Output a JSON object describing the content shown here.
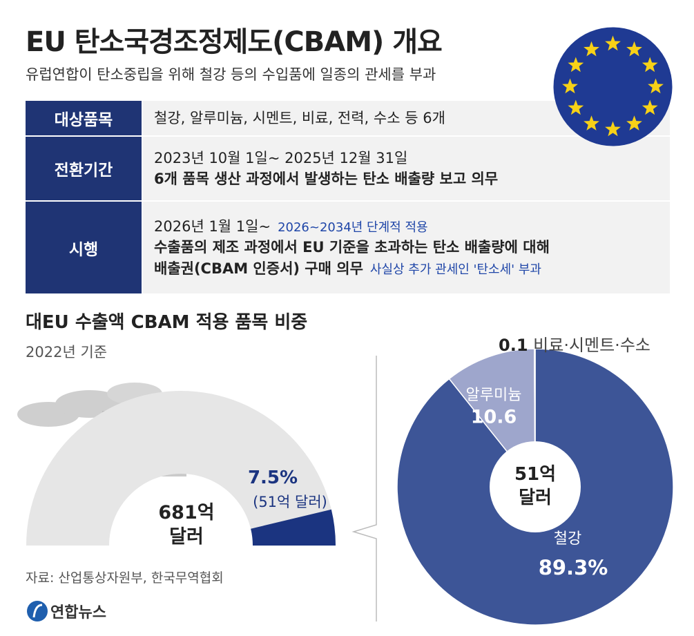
{
  "header": {
    "title": "EU 탄소국경조정제도(CBAM) 개요",
    "subtitle": "유럽연합이 탄소중립을 위해 철강 등의 수입품에 일종의 관세를 부과"
  },
  "table": {
    "rows": [
      {
        "label": "대상품목",
        "lines": [
          {
            "text": "철강, 알루미늄, 시멘트, 비료, 전력, 수소 등 6개"
          }
        ]
      },
      {
        "label": "전환기간",
        "lines": [
          {
            "text": "2023년 10월 1일~ 2025년 12월 31일"
          },
          {
            "text": "6개 품목 생산 과정에서 발생하는 탄소 배출량 보고 의무",
            "bold": true
          }
        ]
      },
      {
        "label": "시행",
        "lines": [
          {
            "text": "2026년 1월 1일~",
            "note": "2026~2034년 단계적 적용"
          },
          {
            "text": "수출품의 제조 과정에서 EU 기준을 초과하는 탄소 배출량에 대해",
            "bold": true
          },
          {
            "text": "배출권(CBAM 인증서) 구매 의무",
            "bold": true,
            "note": "사실상 추가 관세인 '탄소세' 부과"
          }
        ]
      }
    ]
  },
  "chart_data": [
    {
      "type": "gauge",
      "title": "대EU 수출액 CBAM 적용 품목 비중",
      "subtitle": "2022년 기준",
      "total_label": "681억 달러",
      "values": [
        7.5
      ],
      "value_labels": [
        "7.5%"
      ],
      "annotation": "(51억 달러)",
      "ylim": [
        0,
        100
      ],
      "color": "#1b3480",
      "track_color": "#e6e6e6"
    },
    {
      "type": "pie",
      "categories": [
        "철강",
        "알루미늄",
        "비료·시멘트·수소"
      ],
      "values": [
        89.3,
        10.6,
        0.1
      ],
      "value_labels": [
        "89.3%",
        "10.6",
        "0.1"
      ],
      "colors": [
        "#3d5597",
        "#9ea6cc",
        "#e6e6ee"
      ],
      "center_label": "51억 달러"
    }
  ],
  "source": "자료: 산업통상자원부, 한국무역협회",
  "logo": "연합뉴스"
}
